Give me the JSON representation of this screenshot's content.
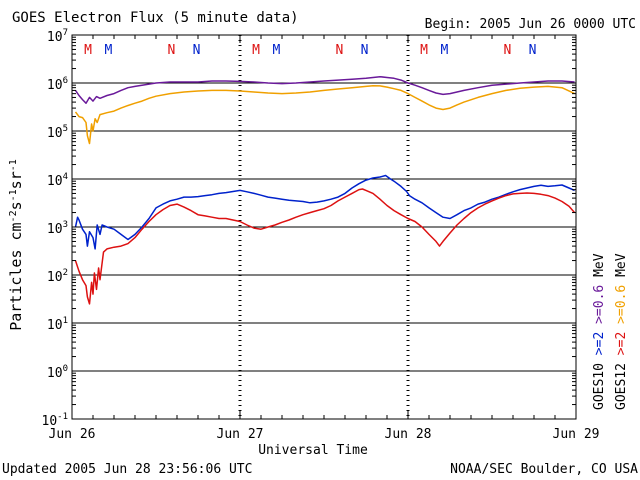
{
  "header": {
    "title": "GOES Electron Flux (5 minute data)",
    "begin": "Begin: 2005 Jun 26 0000 UTC"
  },
  "footer": {
    "updated": "Updated 2005 Jun 28 23:56:06 UTC",
    "credit": "NOAA/SEC Boulder, CO USA"
  },
  "colors": {
    "goes10_2mev": "#0022cc",
    "goes12_2mev": "#dd1111",
    "goes10_06mev": "#6a1a9a",
    "goes12_06mev": "#f0a000",
    "axis": "#000000"
  },
  "chart_data": {
    "type": "line",
    "title": "GOES Electron Flux (5 minute data)",
    "xlabel": "Universal Time",
    "ylabel": "Particles cm-2 s-1 sr-1",
    "yscale": "log",
    "ylim": [
      0.1,
      10000000
    ],
    "xlim": [
      0,
      72
    ],
    "x_units": "hours since 2005 Jun 26 0000 UTC",
    "y_ticks": [
      {
        "value": 0.1,
        "base": "10",
        "exp": "-1"
      },
      {
        "value": 1,
        "base": "10",
        "exp": "0"
      },
      {
        "value": 10,
        "base": "10",
        "exp": "1"
      },
      {
        "value": 100,
        "base": "10",
        "exp": "2"
      },
      {
        "value": 1000,
        "base": "10",
        "exp": "3"
      },
      {
        "value": 10000,
        "base": "10",
        "exp": "4"
      },
      {
        "value": 100000,
        "base": "10",
        "exp": "5"
      },
      {
        "value": 1000000,
        "base": "10",
        "exp": "6"
      },
      {
        "value": 10000000,
        "base": "10",
        "exp": "7"
      }
    ],
    "x_ticks": [
      {
        "hour": 0,
        "label": "Jun 26"
      },
      {
        "hour": 24,
        "label": "Jun 27"
      },
      {
        "hour": 48,
        "label": "Jun 28"
      },
      {
        "hour": 72,
        "label": "Jun 29"
      }
    ],
    "threshold": 1000,
    "markers": [
      {
        "hour": 2.3,
        "label": "M",
        "color": "#dd1111"
      },
      {
        "hour": 5.2,
        "label": "M",
        "color": "#0022cc"
      },
      {
        "hour": 14.2,
        "label": "N",
        "color": "#dd1111"
      },
      {
        "hour": 17.8,
        "label": "N",
        "color": "#0022cc"
      },
      {
        "hour": 26.3,
        "label": "M",
        "color": "#dd1111"
      },
      {
        "hour": 29.2,
        "label": "M",
        "color": "#0022cc"
      },
      {
        "hour": 38.2,
        "label": "N",
        "color": "#dd1111"
      },
      {
        "hour": 41.8,
        "label": "N",
        "color": "#0022cc"
      },
      {
        "hour": 50.3,
        "label": "M",
        "color": "#dd1111"
      },
      {
        "hour": 53.2,
        "label": "M",
        "color": "#0022cc"
      },
      {
        "hour": 62.2,
        "label": "N",
        "color": "#dd1111"
      },
      {
        "hour": 65.8,
        "label": "N",
        "color": "#0022cc"
      }
    ],
    "series": [
      {
        "name": "GOES10 >=2 MeV",
        "color": "#0022cc",
        "points": [
          [
            0.5,
            1000
          ],
          [
            0.8,
            1600
          ],
          [
            1,
            1400
          ],
          [
            1.5,
            900
          ],
          [
            2,
            700
          ],
          [
            2.2,
            400
          ],
          [
            2.5,
            800
          ],
          [
            3,
            600
          ],
          [
            3.3,
            350
          ],
          [
            3.6,
            1100
          ],
          [
            4,
            700
          ],
          [
            4.3,
            1100
          ],
          [
            5,
            1000
          ],
          [
            6,
            900
          ],
          [
            7,
            700
          ],
          [
            8,
            550
          ],
          [
            9,
            700
          ],
          [
            10,
            1000
          ],
          [
            11,
            1500
          ],
          [
            12,
            2500
          ],
          [
            13,
            3000
          ],
          [
            14,
            3500
          ],
          [
            15,
            3800
          ],
          [
            16,
            4200
          ],
          [
            17,
            4200
          ],
          [
            18,
            4300
          ],
          [
            19,
            4500
          ],
          [
            20,
            4700
          ],
          [
            21,
            5000
          ],
          [
            22,
            5200
          ],
          [
            23,
            5500
          ],
          [
            24,
            5800
          ],
          [
            25,
            5400
          ],
          [
            26,
            5000
          ],
          [
            27,
            4600
          ],
          [
            28,
            4200
          ],
          [
            29,
            4000
          ],
          [
            30,
            3800
          ],
          [
            31,
            3600
          ],
          [
            32,
            3500
          ],
          [
            33,
            3400
          ],
          [
            34,
            3200
          ],
          [
            35,
            3300
          ],
          [
            36,
            3500
          ],
          [
            37,
            3800
          ],
          [
            38,
            4200
          ],
          [
            39,
            5000
          ],
          [
            40,
            6500
          ],
          [
            41,
            8000
          ],
          [
            42,
            9500
          ],
          [
            43,
            10500
          ],
          [
            44,
            11000
          ],
          [
            44.8,
            11800
          ],
          [
            45.5,
            10000
          ],
          [
            46,
            9000
          ],
          [
            47,
            7000
          ],
          [
            47.8,
            5500
          ],
          [
            48.2,
            4500
          ],
          [
            49,
            3800
          ],
          [
            50,
            3200
          ],
          [
            51,
            2500
          ],
          [
            52,
            2000
          ],
          [
            53,
            1600
          ],
          [
            54,
            1500
          ],
          [
            55,
            1800
          ],
          [
            56,
            2200
          ],
          [
            57,
            2500
          ],
          [
            58,
            3000
          ],
          [
            59,
            3300
          ],
          [
            60,
            3800
          ],
          [
            61,
            4200
          ],
          [
            62,
            4800
          ],
          [
            63,
            5400
          ],
          [
            64,
            6000
          ],
          [
            65,
            6500
          ],
          [
            66,
            7000
          ],
          [
            67,
            7400
          ],
          [
            68,
            7000
          ],
          [
            69,
            7200
          ],
          [
            70,
            7500
          ],
          [
            71,
            6500
          ],
          [
            71.8,
            5800
          ]
        ]
      },
      {
        "name": "GOES12 >=2 MeV",
        "color": "#dd1111",
        "points": [
          [
            0.5,
            200
          ],
          [
            1,
            120
          ],
          [
            1.5,
            80
          ],
          [
            2,
            60
          ],
          [
            2.2,
            35
          ],
          [
            2.5,
            25
          ],
          [
            2.8,
            70
          ],
          [
            3,
            40
          ],
          [
            3.2,
            110
          ],
          [
            3.5,
            50
          ],
          [
            3.8,
            140
          ],
          [
            4,
            80
          ],
          [
            4.5,
            300
          ],
          [
            5,
            350
          ],
          [
            6,
            380
          ],
          [
            7,
            400
          ],
          [
            8,
            450
          ],
          [
            9,
            600
          ],
          [
            10,
            900
          ],
          [
            11,
            1300
          ],
          [
            12,
            1800
          ],
          [
            13,
            2300
          ],
          [
            14,
            2800
          ],
          [
            15,
            3000
          ],
          [
            16,
            2600
          ],
          [
            17,
            2200
          ],
          [
            18,
            1800
          ],
          [
            19,
            1700
          ],
          [
            20,
            1600
          ],
          [
            21,
            1500
          ],
          [
            22,
            1500
          ],
          [
            23,
            1400
          ],
          [
            24,
            1300
          ],
          [
            25,
            1100
          ],
          [
            26,
            950
          ],
          [
            27,
            900
          ],
          [
            28,
            1000
          ],
          [
            29,
            1100
          ],
          [
            30,
            1250
          ],
          [
            31,
            1400
          ],
          [
            32,
            1600
          ],
          [
            33,
            1800
          ],
          [
            34,
            2000
          ],
          [
            35,
            2200
          ],
          [
            36,
            2400
          ],
          [
            37,
            2800
          ],
          [
            38,
            3500
          ],
          [
            39,
            4200
          ],
          [
            40,
            5000
          ],
          [
            41,
            6000
          ],
          [
            41.5,
            6200
          ],
          [
            42,
            5800
          ],
          [
            43,
            5000
          ],
          [
            44,
            3800
          ],
          [
            45,
            2800
          ],
          [
            46,
            2200
          ],
          [
            47,
            1800
          ],
          [
            48,
            1500
          ],
          [
            49,
            1300
          ],
          [
            50,
            1000
          ],
          [
            51,
            700
          ],
          [
            52,
            500
          ],
          [
            52.5,
            400
          ],
          [
            53,
            500
          ],
          [
            54,
            750
          ],
          [
            55,
            1100
          ],
          [
            56,
            1500
          ],
          [
            57,
            2000
          ],
          [
            58,
            2500
          ],
          [
            59,
            3000
          ],
          [
            60,
            3500
          ],
          [
            61,
            4000
          ],
          [
            62,
            4500
          ],
          [
            63,
            4900
          ],
          [
            64,
            5000
          ],
          [
            65,
            5100
          ],
          [
            66,
            5000
          ],
          [
            67,
            4800
          ],
          [
            68,
            4500
          ],
          [
            69,
            4000
          ],
          [
            70,
            3400
          ],
          [
            71,
            2700
          ],
          [
            71.8,
            2000
          ]
        ]
      },
      {
        "name": "GOES10 >=0.6 MeV",
        "color": "#6a1a9a",
        "points": [
          [
            0.5,
            700000
          ],
          [
            1,
            550000
          ],
          [
            1.5,
            450000
          ],
          [
            2,
            380000
          ],
          [
            2.5,
            500000
          ],
          [
            3,
            420000
          ],
          [
            3.5,
            520000
          ],
          [
            4,
            480000
          ],
          [
            5,
            550000
          ],
          [
            6,
            600000
          ],
          [
            7,
            700000
          ],
          [
            8,
            800000
          ],
          [
            9,
            850000
          ],
          [
            10,
            900000
          ],
          [
            11,
            950000
          ],
          [
            12,
            1000000
          ],
          [
            14,
            1050000
          ],
          [
            16,
            1050000
          ],
          [
            18,
            1050000
          ],
          [
            20,
            1100000
          ],
          [
            22,
            1100000
          ],
          [
            24,
            1080000
          ],
          [
            26,
            1050000
          ],
          [
            28,
            1000000
          ],
          [
            30,
            970000
          ],
          [
            32,
            1000000
          ],
          [
            34,
            1050000
          ],
          [
            36,
            1100000
          ],
          [
            38,
            1150000
          ],
          [
            40,
            1200000
          ],
          [
            42,
            1250000
          ],
          [
            43,
            1300000
          ],
          [
            44,
            1350000
          ],
          [
            45,
            1300000
          ],
          [
            46,
            1250000
          ],
          [
            47,
            1150000
          ],
          [
            48,
            1000000
          ],
          [
            49,
            900000
          ],
          [
            50,
            800000
          ],
          [
            51,
            700000
          ],
          [
            52,
            620000
          ],
          [
            53,
            580000
          ],
          [
            54,
            600000
          ],
          [
            55,
            650000
          ],
          [
            56,
            700000
          ],
          [
            58,
            800000
          ],
          [
            60,
            900000
          ],
          [
            62,
            950000
          ],
          [
            64,
            1000000
          ],
          [
            66,
            1050000
          ],
          [
            68,
            1100000
          ],
          [
            70,
            1100000
          ],
          [
            71.8,
            1050000
          ]
        ]
      },
      {
        "name": "GOES12 >=0.6 MeV",
        "color": "#f0a000",
        "points": [
          [
            0.5,
            250000
          ],
          [
            1,
            200000
          ],
          [
            1.5,
            190000
          ],
          [
            2,
            150000
          ],
          [
            2.2,
            80000
          ],
          [
            2.5,
            55000
          ],
          [
            2.8,
            140000
          ],
          [
            3,
            100000
          ],
          [
            3.3,
            180000
          ],
          [
            3.6,
            150000
          ],
          [
            4,
            220000
          ],
          [
            5,
            240000
          ],
          [
            6,
            260000
          ],
          [
            7,
            300000
          ],
          [
            8,
            340000
          ],
          [
            9,
            380000
          ],
          [
            10,
            420000
          ],
          [
            11,
            480000
          ],
          [
            12,
            530000
          ],
          [
            14,
            600000
          ],
          [
            16,
            650000
          ],
          [
            18,
            680000
          ],
          [
            20,
            700000
          ],
          [
            22,
            700000
          ],
          [
            24,
            680000
          ],
          [
            26,
            650000
          ],
          [
            28,
            620000
          ],
          [
            30,
            600000
          ],
          [
            32,
            620000
          ],
          [
            34,
            650000
          ],
          [
            36,
            700000
          ],
          [
            38,
            750000
          ],
          [
            40,
            800000
          ],
          [
            42,
            850000
          ],
          [
            43,
            880000
          ],
          [
            44,
            870000
          ],
          [
            45,
            820000
          ],
          [
            46,
            760000
          ],
          [
            47,
            700000
          ],
          [
            48,
            600000
          ],
          [
            49,
            500000
          ],
          [
            50,
            420000
          ],
          [
            51,
            350000
          ],
          [
            52,
            300000
          ],
          [
            53,
            280000
          ],
          [
            54,
            300000
          ],
          [
            55,
            350000
          ],
          [
            56,
            400000
          ],
          [
            58,
            500000
          ],
          [
            60,
            600000
          ],
          [
            62,
            700000
          ],
          [
            64,
            780000
          ],
          [
            66,
            820000
          ],
          [
            68,
            850000
          ],
          [
            70,
            800000
          ],
          [
            71.8,
            600000
          ]
        ]
      }
    ],
    "legend": [
      {
        "line": "GOES10",
        "color_1": "#000000",
        "text_2mev": ">=2",
        "color_2mev": "#0022cc",
        "text_06mev": ">=0.6",
        "color_06mev": "#6a1a9a",
        "unit": "MeV"
      },
      {
        "line": "GOES12",
        "color_1": "#000000",
        "text_2mev": ">=2",
        "color_2mev": "#dd1111",
        "text_06mev": ">=0.6",
        "color_06mev": "#f0a000",
        "unit": "MeV"
      }
    ]
  }
}
